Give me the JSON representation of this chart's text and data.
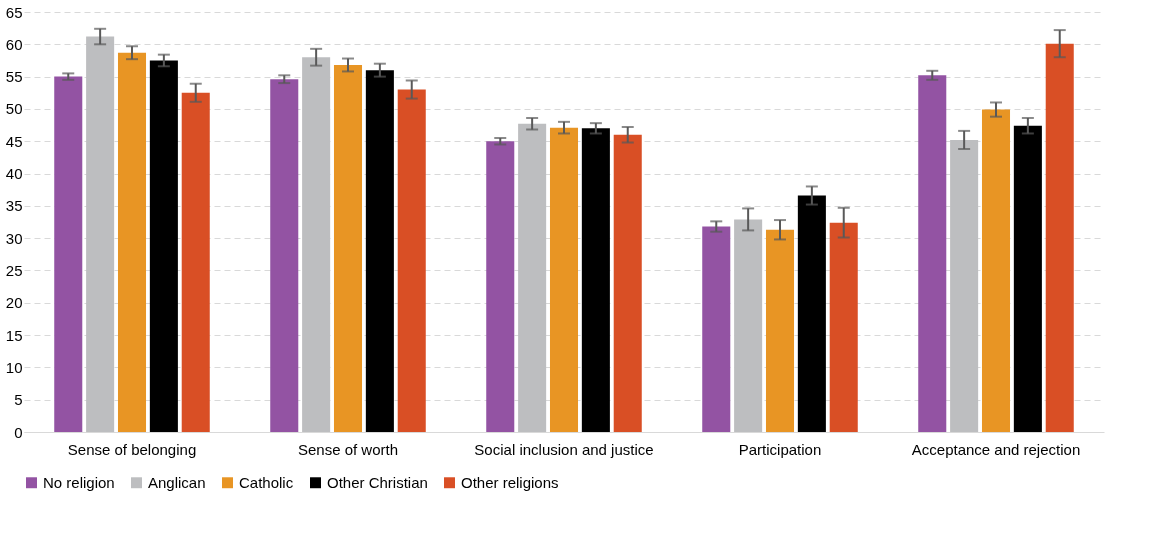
{
  "chart_data": {
    "type": "bar",
    "categories": [
      "Sense of belonging",
      "Sense of worth",
      "Social inclusion and justice",
      "Participation",
      "Acceptance and rejection"
    ],
    "series": [
      {
        "name": "No religion",
        "color": "#9353a3",
        "values": [
          55.0,
          54.6,
          45.0,
          31.8,
          55.2
        ],
        "errors": [
          0.5,
          0.6,
          0.5,
          0.8,
          0.7
        ]
      },
      {
        "name": "Anglican",
        "color": "#bdbec0",
        "values": [
          61.2,
          58.0,
          47.7,
          32.9,
          45.2
        ],
        "errors": [
          1.2,
          1.3,
          0.9,
          1.7,
          1.4
        ]
      },
      {
        "name": "Catholic",
        "color": "#e89524",
        "values": [
          58.7,
          56.8,
          47.1,
          31.3,
          49.9
        ],
        "errors": [
          1.0,
          1.0,
          0.9,
          1.5,
          1.1
        ]
      },
      {
        "name": "Other Christian",
        "color": "#000000",
        "values": [
          57.5,
          56.0,
          47.0,
          36.6,
          47.4
        ],
        "errors": [
          0.9,
          1.0,
          0.8,
          1.4,
          1.2
        ]
      },
      {
        "name": "Other religions",
        "color": "#d94f25",
        "values": [
          52.5,
          53.0,
          46.0,
          32.4,
          60.1
        ],
        "errors": [
          1.4,
          1.4,
          1.2,
          2.3,
          2.1
        ]
      }
    ],
    "ylim": [
      0,
      65
    ],
    "yticks": [
      0,
      5,
      10,
      15,
      20,
      25,
      30,
      35,
      40,
      45,
      50,
      55,
      60,
      65
    ],
    "grid": "y",
    "legend": "bottom"
  }
}
